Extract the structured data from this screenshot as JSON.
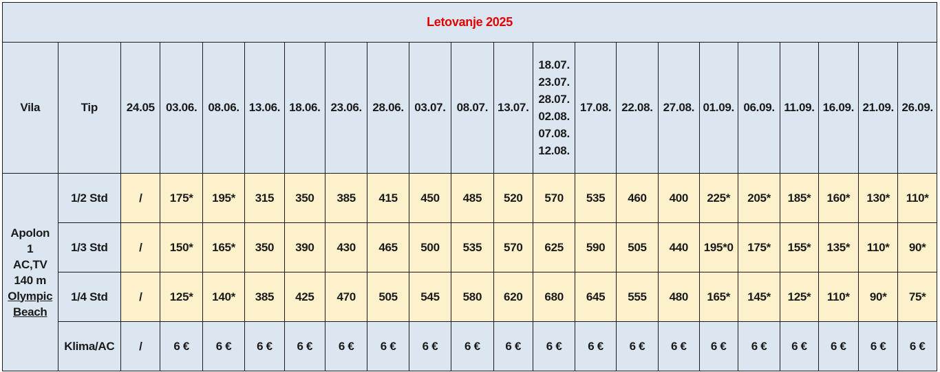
{
  "title": "Letovanje 2025",
  "header": {
    "vila_label": "Vila",
    "tip_label": "Tip",
    "dates": [
      "24.05",
      "03.06.",
      "08.06.",
      "13.06.",
      "18.06.",
      "23.06.",
      "28.06.",
      "03.07.",
      "08.07.",
      "13.07."
    ],
    "multi_date": [
      "18.07.",
      "23.07.",
      "28.07.",
      "02.08.",
      "07.08.",
      "12.08."
    ],
    "dates2": [
      "17.08.",
      "22.08.",
      "27.08.",
      "01.09.",
      "06.09.",
      "11.09.",
      "16.09.",
      "21.09.",
      "26.09."
    ]
  },
  "vila": {
    "line1": "Apolon",
    "line2": "1",
    "line3": "AC,TV",
    "line4": "140 m",
    "link1": "Olympic",
    "link2": "Beach"
  },
  "rows": [
    {
      "tip": "1/2 Std",
      "prices": [
        "/",
        "175*",
        "195*",
        "315",
        "350",
        "385",
        "415",
        "450",
        "485",
        "520",
        "570",
        "535",
        "460",
        "400",
        "225*",
        "205*",
        "185*",
        "160*",
        "130*",
        "110*"
      ]
    },
    {
      "tip": "1/3 Std",
      "prices": [
        "/",
        "150*",
        "165*",
        "350",
        "390",
        "430",
        "465",
        "500",
        "535",
        "570",
        "625",
        "590",
        "505",
        "440",
        "195*0",
        "175*",
        "155*",
        "135*",
        "110*",
        "90*"
      ]
    },
    {
      "tip": "1/4 Std",
      "prices": [
        "/",
        "125*",
        "140*",
        "385",
        "425",
        "470",
        "505",
        "545",
        "580",
        "620",
        "680",
        "645",
        "555",
        "480",
        "165*",
        "145*",
        "125*",
        "110*",
        "90*",
        "75*"
      ]
    },
    {
      "tip": "Klima/AC",
      "prices": [
        "/",
        "6 €",
        "6 €",
        "6 €",
        "6 €",
        "6 €",
        "6 €",
        "6 €",
        "6 €",
        "6 €",
        "6 €",
        "6 €",
        "6 €",
        "6 €",
        "6 €",
        "6 €",
        "6 €",
        "6 €",
        "6 €",
        "6 €"
      ]
    }
  ],
  "colors": {
    "title": "#e00000",
    "blue_cell": "#dce6f1",
    "yellow_cell": "#fdf1cc"
  }
}
